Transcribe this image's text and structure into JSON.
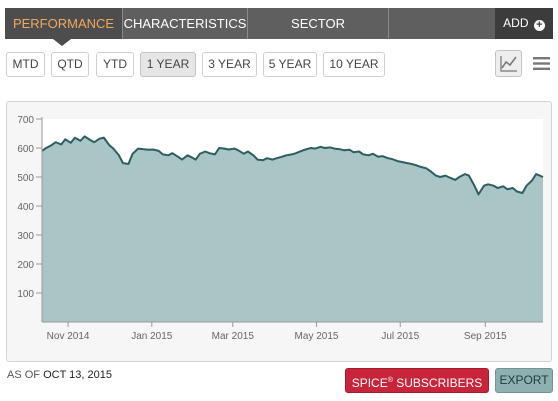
{
  "tabs": [
    {
      "label": "PERFORMANCE",
      "active": true
    },
    {
      "label": "CHARACTERISTICS",
      "active": false
    },
    {
      "label": "SECTOR BREAKDOWN",
      "active": false
    }
  ],
  "add_label": "ADD",
  "periods": [
    {
      "label": "MTD",
      "active": false
    },
    {
      "label": "QTD",
      "active": false
    },
    {
      "label": "YTD",
      "active": false
    },
    {
      "label": "1 YEAR",
      "active": true
    },
    {
      "label": "3 YEAR",
      "active": false
    },
    {
      "label": "5 YEAR",
      "active": false
    },
    {
      "label": "10 YEAR",
      "active": false
    }
  ],
  "view_icons": [
    "line-chart-icon",
    "menu-icon"
  ],
  "chart_data": {
    "type": "area",
    "title": "",
    "xlabel": "",
    "ylabel": "",
    "ylim": [
      0,
      700
    ],
    "yticks": [
      100,
      200,
      300,
      400,
      500,
      600,
      700
    ],
    "xlim": [
      "2014-10-13",
      "2015-10-13"
    ],
    "xticks": [
      {
        "label": "Nov 2014",
        "date": "2014-11-01"
      },
      {
        "label": "Jan 2015",
        "date": "2015-01-01"
      },
      {
        "label": "Mar 2015",
        "date": "2015-03-01"
      },
      {
        "label": "May 2015",
        "date": "2015-05-01"
      },
      {
        "label": "Jul 2015",
        "date": "2015-07-01"
      },
      {
        "label": "Sep 2015",
        "date": "2015-09-01"
      }
    ],
    "grid": false,
    "legend": "none",
    "fill_color": "#a9c5c6",
    "line_color": "#2e5e60",
    "series": [
      {
        "points": [
          [
            "2014-10-13",
            590
          ],
          [
            "2014-10-16",
            600
          ],
          [
            "2014-10-20",
            610
          ],
          [
            "2014-10-23",
            620
          ],
          [
            "2014-10-27",
            612
          ],
          [
            "2014-10-30",
            630
          ],
          [
            "2014-11-03",
            618
          ],
          [
            "2014-11-06",
            635
          ],
          [
            "2014-11-10",
            625
          ],
          [
            "2014-11-13",
            640
          ],
          [
            "2014-11-17",
            628
          ],
          [
            "2014-11-20",
            620
          ],
          [
            "2014-11-24",
            632
          ],
          [
            "2014-11-27",
            636
          ],
          [
            "2014-12-01",
            610
          ],
          [
            "2014-12-04",
            598
          ],
          [
            "2014-12-08",
            575
          ],
          [
            "2014-12-11",
            548
          ],
          [
            "2014-12-15",
            545
          ],
          [
            "2014-12-18",
            580
          ],
          [
            "2014-12-22",
            598
          ],
          [
            "2014-12-26",
            596
          ],
          [
            "2014-12-30",
            594
          ],
          [
            "2015-01-02",
            595
          ],
          [
            "2015-01-06",
            590
          ],
          [
            "2015-01-09",
            578
          ],
          [
            "2015-01-13",
            575
          ],
          [
            "2015-01-16",
            582
          ],
          [
            "2015-01-20",
            570
          ],
          [
            "2015-01-23",
            560
          ],
          [
            "2015-01-27",
            575
          ],
          [
            "2015-01-30",
            568
          ],
          [
            "2015-02-02",
            560
          ],
          [
            "2015-02-05",
            580
          ],
          [
            "2015-02-09",
            588
          ],
          [
            "2015-02-12",
            582
          ],
          [
            "2015-02-16",
            578
          ],
          [
            "2015-02-19",
            600
          ],
          [
            "2015-02-23",
            598
          ],
          [
            "2015-02-26",
            595
          ],
          [
            "2015-03-02",
            598
          ],
          [
            "2015-03-05",
            592
          ],
          [
            "2015-03-09",
            580
          ],
          [
            "2015-03-12",
            588
          ],
          [
            "2015-03-16",
            575
          ],
          [
            "2015-03-19",
            560
          ],
          [
            "2015-03-23",
            558
          ],
          [
            "2015-03-26",
            565
          ],
          [
            "2015-03-30",
            560
          ],
          [
            "2015-04-02",
            565
          ],
          [
            "2015-04-06",
            570
          ],
          [
            "2015-04-09",
            575
          ],
          [
            "2015-04-13",
            578
          ],
          [
            "2015-04-16",
            582
          ],
          [
            "2015-04-20",
            590
          ],
          [
            "2015-04-23",
            595
          ],
          [
            "2015-04-27",
            600
          ],
          [
            "2015-04-30",
            598
          ],
          [
            "2015-05-04",
            604
          ],
          [
            "2015-05-07",
            600
          ],
          [
            "2015-05-11",
            602
          ],
          [
            "2015-05-14",
            598
          ],
          [
            "2015-05-18",
            596
          ],
          [
            "2015-05-21",
            592
          ],
          [
            "2015-05-25",
            594
          ],
          [
            "2015-05-28",
            585
          ],
          [
            "2015-06-01",
            588
          ],
          [
            "2015-06-04",
            578
          ],
          [
            "2015-06-08",
            575
          ],
          [
            "2015-06-11",
            580
          ],
          [
            "2015-06-15",
            570
          ],
          [
            "2015-06-18",
            572
          ],
          [
            "2015-06-22",
            565
          ],
          [
            "2015-06-25",
            562
          ],
          [
            "2015-06-29",
            555
          ],
          [
            "2015-07-02",
            552
          ],
          [
            "2015-07-06",
            548
          ],
          [
            "2015-07-09",
            545
          ],
          [
            "2015-07-13",
            540
          ],
          [
            "2015-07-16",
            535
          ],
          [
            "2015-07-20",
            530
          ],
          [
            "2015-07-23",
            520
          ],
          [
            "2015-07-27",
            505
          ],
          [
            "2015-07-30",
            500
          ],
          [
            "2015-08-03",
            505
          ],
          [
            "2015-08-06",
            498
          ],
          [
            "2015-08-10",
            490
          ],
          [
            "2015-08-13",
            500
          ],
          [
            "2015-08-17",
            510
          ],
          [
            "2015-08-20",
            505
          ],
          [
            "2015-08-24",
            470
          ],
          [
            "2015-08-27",
            440
          ],
          [
            "2015-08-31",
            470
          ],
          [
            "2015-09-03",
            475
          ],
          [
            "2015-09-07",
            470
          ],
          [
            "2015-09-10",
            462
          ],
          [
            "2015-09-14",
            468
          ],
          [
            "2015-09-17",
            458
          ],
          [
            "2015-09-21",
            462
          ],
          [
            "2015-09-24",
            450
          ],
          [
            "2015-09-28",
            445
          ],
          [
            "2015-10-01",
            470
          ],
          [
            "2015-10-05",
            488
          ],
          [
            "2015-10-08",
            510
          ],
          [
            "2015-10-13",
            500
          ]
        ]
      }
    ]
  },
  "as_of_label": "AS OF",
  "as_of_date": "OCT 13, 2015",
  "spice_label": "SPICE",
  "spice_reg": "®",
  "subscribers_label": "SUBSCRIBERS",
  "export_label": "EXPORT"
}
